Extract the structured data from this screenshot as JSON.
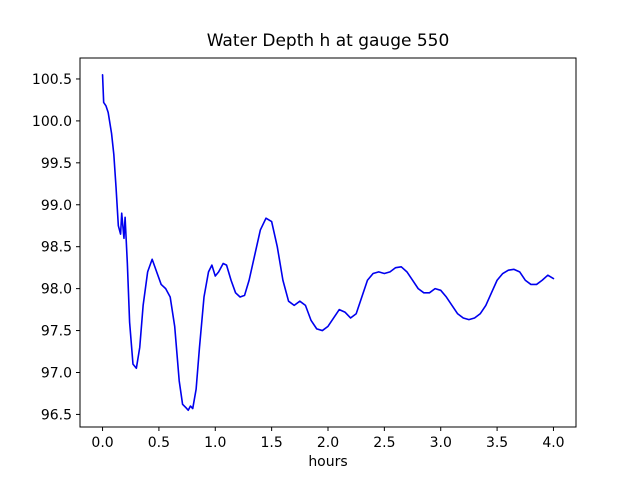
{
  "figure": {
    "background": "#ffffff"
  },
  "chart_data": {
    "type": "line",
    "title": "Water Depth h at gauge 550",
    "xlabel": "hours",
    "ylabel": "",
    "xlim": [
      -0.2,
      4.2
    ],
    "ylim": [
      96.35,
      100.75
    ],
    "xticks": [
      0.0,
      0.5,
      1.0,
      1.5,
      2.0,
      2.5,
      3.0,
      3.5,
      4.0
    ],
    "yticks": [
      96.5,
      97.0,
      97.5,
      98.0,
      98.5,
      99.0,
      99.5,
      100.0,
      100.5
    ],
    "grid": false,
    "legend": null,
    "line_color": "#0000ee",
    "line_width": 1.6,
    "x": [
      0.0,
      0.01,
      0.03,
      0.05,
      0.08,
      0.1,
      0.12,
      0.14,
      0.16,
      0.17,
      0.19,
      0.2,
      0.22,
      0.24,
      0.27,
      0.3,
      0.33,
      0.36,
      0.4,
      0.44,
      0.48,
      0.52,
      0.56,
      0.6,
      0.64,
      0.68,
      0.71,
      0.74,
      0.76,
      0.78,
      0.8,
      0.83,
      0.86,
      0.9,
      0.94,
      0.97,
      1.0,
      1.03,
      1.07,
      1.1,
      1.14,
      1.18,
      1.22,
      1.26,
      1.3,
      1.35,
      1.4,
      1.45,
      1.5,
      1.55,
      1.6,
      1.65,
      1.7,
      1.75,
      1.8,
      1.85,
      1.9,
      1.95,
      2.0,
      2.05,
      2.1,
      2.15,
      2.2,
      2.25,
      2.3,
      2.35,
      2.4,
      2.45,
      2.5,
      2.55,
      2.6,
      2.65,
      2.7,
      2.75,
      2.8,
      2.85,
      2.9,
      2.95,
      3.0,
      3.05,
      3.1,
      3.15,
      3.2,
      3.25,
      3.3,
      3.35,
      3.4,
      3.45,
      3.5,
      3.55,
      3.6,
      3.65,
      3.7,
      3.75,
      3.8,
      3.85,
      3.9,
      3.95,
      4.0
    ],
    "y": [
      100.55,
      100.22,
      100.18,
      100.1,
      99.85,
      99.6,
      99.2,
      98.75,
      98.65,
      98.9,
      98.6,
      98.85,
      98.3,
      97.6,
      97.1,
      97.05,
      97.3,
      97.8,
      98.2,
      98.35,
      98.2,
      98.05,
      98.0,
      97.9,
      97.55,
      96.9,
      96.62,
      96.58,
      96.55,
      96.6,
      96.57,
      96.8,
      97.3,
      97.9,
      98.2,
      98.28,
      98.15,
      98.2,
      98.3,
      98.28,
      98.1,
      97.95,
      97.9,
      97.92,
      98.1,
      98.4,
      98.7,
      98.84,
      98.8,
      98.5,
      98.1,
      97.85,
      97.8,
      97.85,
      97.8,
      97.62,
      97.52,
      97.5,
      97.55,
      97.65,
      97.75,
      97.72,
      97.65,
      97.7,
      97.9,
      98.1,
      98.18,
      98.2,
      98.18,
      98.2,
      98.25,
      98.26,
      98.2,
      98.1,
      98.0,
      97.95,
      97.95,
      98.0,
      97.98,
      97.9,
      97.8,
      97.7,
      97.65,
      97.63,
      97.65,
      97.7,
      97.8,
      97.95,
      98.1,
      98.18,
      98.22,
      98.23,
      98.2,
      98.1,
      98.05,
      98.05,
      98.1,
      98.16,
      98.12
    ]
  }
}
